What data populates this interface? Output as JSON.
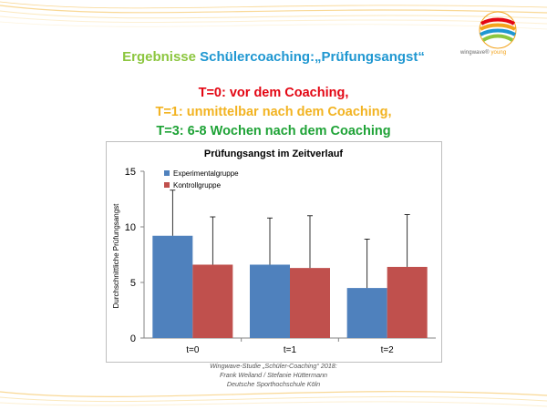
{
  "slide": {
    "title_part1": "Ergebnisse",
    "title_part2": "Schülercoaching:",
    "title_part3": "„Prüfungsangst“",
    "subtitle_t0": "T=0: vor dem Coaching,",
    "subtitle_t1": "T=1: unmittelbar nach dem Coaching,",
    "subtitle_t3": "T=3: 6-8 Wochen nach dem Coaching",
    "footer_line1": "Wingwave-Studie „Schüler-Coaching“ 2018:",
    "footer_line2": "Frank Weiland / Stefanie Hüttermann",
    "footer_line3": "Deutsche Sporthochschule  Köln"
  },
  "logo": {
    "brand": "wingwave",
    "brand_young": "young",
    "icon": "wingwave-logo-icon"
  },
  "colors": {
    "experimental": "#4f81bd",
    "control": "#c0504d",
    "title_green": "#8cc63f",
    "title_blue": "#1f97d1",
    "red": "#e30613",
    "yellow": "#f2b321",
    "green": "#1fa337"
  },
  "chart_data": {
    "type": "bar",
    "title": "Prüfungsangst im Zeitverlauf",
    "xlabel": "",
    "ylabel": "Durchschnittliche Prüfungsangst",
    "categories": [
      "t=0",
      "t=1",
      "t=2"
    ],
    "series": [
      {
        "name": "Experimentalgruppe",
        "values": [
          9.2,
          6.6,
          4.5
        ],
        "error_upper": [
          13.3,
          10.8,
          8.9
        ]
      },
      {
        "name": "Kontrollgruppe",
        "values": [
          6.6,
          6.3,
          6.4
        ],
        "error_upper": [
          10.9,
          11.0,
          11.1
        ]
      }
    ],
    "ylim": [
      0,
      15
    ],
    "yticks": [
      "0",
      "5",
      "10",
      "15"
    ],
    "grid": false,
    "legend_position": "top-left"
  }
}
